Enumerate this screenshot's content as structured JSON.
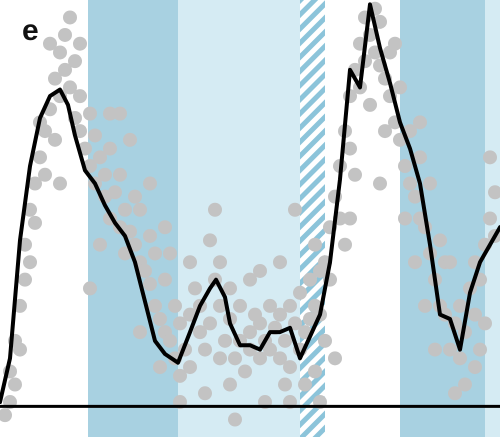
{
  "panel_label": "e",
  "colors": {
    "band_dark": "#a8d1e1",
    "band_light": "#d5ebf3",
    "hatch": "#8cc4da",
    "scatter": "#c3c3c3",
    "line": "#000000",
    "baseline": "#000000"
  },
  "chart_data": {
    "type": "line",
    "title": "",
    "xlabel": "",
    "ylabel": "",
    "xlim": [
      0,
      100
    ],
    "ylim": [
      0,
      100
    ],
    "axes_visible": false,
    "grid": false,
    "baseline_y": 7,
    "bands": [
      {
        "kind": "dark",
        "x0": 17.6,
        "x1": 35.6
      },
      {
        "kind": "light",
        "x0": 35.6,
        "x1": 60.0
      },
      {
        "kind": "hatched",
        "x0": 60.0,
        "x1": 65.0
      },
      {
        "kind": "dark",
        "x0": 80.0,
        "x1": 97.0
      },
      {
        "kind": "light",
        "x0": 97.0,
        "x1": 100.0
      }
    ],
    "series": [
      {
        "style": "line",
        "x": [
          0.0,
          2.0,
          4.0,
          6.0,
          8.0,
          10.0,
          12.0,
          13.6,
          15.0,
          17.0,
          19.0,
          21.0,
          23.0,
          25.0,
          27.0,
          29.0,
          31.0,
          33.0,
          35.6,
          38.0,
          40.0,
          42.0,
          43.2,
          45.0,
          46.0,
          48.0,
          50.0,
          52.0,
          54.0,
          56.0,
          58.0,
          60.0,
          62.0,
          64.0,
          66.0,
          68.0,
          70.0,
          72.0,
          74.0,
          76.0,
          78.0,
          80.0,
          82.0,
          84.0,
          86.0,
          88.0,
          90.0,
          92.0,
          94.0,
          96.0,
          98.0,
          100.0
        ],
        "y": [
          8,
          18,
          45,
          62,
          73,
          78,
          79.5,
          76,
          69,
          61,
          58,
          53,
          49,
          46,
          40,
          31,
          22,
          19,
          17,
          24,
          30,
          34,
          36,
          32,
          26,
          21,
          21,
          20,
          24,
          24,
          25,
          18,
          23,
          28,
          40,
          59,
          84,
          80,
          99,
          89,
          81,
          72,
          66,
          58,
          44,
          28,
          27,
          20,
          33,
          40,
          44,
          48
        ]
      },
      {
        "style": "scatter",
        "points": [
          [
            1,
            5
          ],
          [
            2,
            15
          ],
          [
            3,
            22
          ],
          [
            3,
            12
          ],
          [
            4,
            30
          ],
          [
            5,
            44
          ],
          [
            5,
            36
          ],
          [
            6,
            52
          ],
          [
            7,
            58
          ],
          [
            7,
            49
          ],
          [
            8,
            64
          ],
          [
            9,
            70
          ],
          [
            9,
            60
          ],
          [
            10,
            75
          ],
          [
            11,
            82
          ],
          [
            11,
            68
          ],
          [
            12,
            88
          ],
          [
            12,
            78
          ],
          [
            13,
            92
          ],
          [
            13,
            84
          ],
          [
            14,
            80
          ],
          [
            15,
            73
          ],
          [
            15,
            86
          ],
          [
            16,
            78
          ],
          [
            16,
            70
          ],
          [
            17,
            66
          ],
          [
            18,
            62
          ],
          [
            18,
            74
          ],
          [
            19,
            58
          ],
          [
            19,
            69
          ],
          [
            20,
            64
          ],
          [
            21,
            55
          ],
          [
            21,
            60
          ],
          [
            22,
            50
          ],
          [
            22,
            66
          ],
          [
            23,
            56
          ],
          [
            24,
            48
          ],
          [
            24,
            60
          ],
          [
            25,
            52
          ],
          [
            25,
            42
          ],
          [
            26,
            47
          ],
          [
            27,
            44
          ],
          [
            27,
            55
          ],
          [
            28,
            40
          ],
          [
            28,
            52
          ],
          [
            29,
            38
          ],
          [
            30,
            35
          ],
          [
            30,
            46
          ],
          [
            31,
            30
          ],
          [
            31,
            42
          ],
          [
            32,
            27
          ],
          [
            33,
            24
          ],
          [
            33,
            36
          ],
          [
            34,
            22
          ],
          [
            35,
            30
          ],
          [
            35,
            18
          ],
          [
            36,
            14
          ],
          [
            36,
            26
          ],
          [
            37,
            20
          ],
          [
            38,
            28
          ],
          [
            38,
            16
          ],
          [
            39,
            34
          ],
          [
            40,
            24
          ],
          [
            40,
            30
          ],
          [
            41,
            20
          ],
          [
            42,
            26
          ],
          [
            42,
            45
          ],
          [
            43,
            36
          ],
          [
            43,
            52
          ],
          [
            44,
            30
          ],
          [
            44,
            40
          ],
          [
            45,
            22
          ],
          [
            46,
            27
          ],
          [
            46,
            34
          ],
          [
            47,
            18
          ],
          [
            48,
            22
          ],
          [
            48,
            30
          ],
          [
            49,
            15
          ],
          [
            50,
            24
          ],
          [
            50,
            20
          ],
          [
            51,
            28
          ],
          [
            52,
            18
          ],
          [
            52,
            26
          ],
          [
            53,
            22
          ],
          [
            54,
            30
          ],
          [
            54,
            20
          ],
          [
            55,
            25
          ],
          [
            56,
            18
          ],
          [
            56,
            28
          ],
          [
            57,
            22
          ],
          [
            58,
            30
          ],
          [
            58,
            16
          ],
          [
            59,
            26
          ],
          [
            60,
            20
          ],
          [
            60,
            33
          ],
          [
            61,
            24
          ],
          [
            62,
            36
          ],
          [
            62,
            27
          ],
          [
            63,
            30
          ],
          [
            63,
            44
          ],
          [
            64,
            38
          ],
          [
            64,
            28
          ],
          [
            65,
            40
          ],
          [
            66,
            48
          ],
          [
            66,
            36
          ],
          [
            67,
            55
          ],
          [
            68,
            62
          ],
          [
            68,
            50
          ],
          [
            69,
            70
          ],
          [
            70,
            78
          ],
          [
            70,
            66
          ],
          [
            71,
            84
          ],
          [
            72,
            90
          ],
          [
            72,
            80
          ],
          [
            73,
            96
          ],
          [
            73,
            86
          ],
          [
            74,
            92
          ],
          [
            75,
            98
          ],
          [
            75,
            88
          ],
          [
            76,
            85
          ],
          [
            76,
            95
          ],
          [
            77,
            82
          ],
          [
            78,
            78
          ],
          [
            78,
            88
          ],
          [
            79,
            72
          ],
          [
            80,
            68
          ],
          [
            80,
            80
          ],
          [
            81,
            62
          ],
          [
            82,
            70
          ],
          [
            82,
            58
          ],
          [
            83,
            55
          ],
          [
            84,
            64
          ],
          [
            84,
            50
          ],
          [
            85,
            48
          ],
          [
            86,
            58
          ],
          [
            86,
            42
          ],
          [
            87,
            36
          ],
          [
            88,
            45
          ],
          [
            88,
            30
          ],
          [
            89,
            28
          ],
          [
            90,
            20
          ],
          [
            91,
            26
          ],
          [
            92,
            18
          ],
          [
            92,
            30
          ],
          [
            93,
            24
          ],
          [
            94,
            34
          ],
          [
            95,
            28
          ],
          [
            95,
            40
          ],
          [
            96,
            36
          ],
          [
            97,
            44
          ],
          [
            98,
            50
          ],
          [
            99,
            46
          ],
          [
            99,
            56
          ],
          [
            10,
            90
          ],
          [
            14,
            96
          ],
          [
            20,
            44
          ],
          [
            26,
            68
          ],
          [
            30,
            58
          ],
          [
            33,
            48
          ],
          [
            41,
            10
          ],
          [
            47,
            4
          ],
          [
            53,
            8
          ],
          [
            57,
            12
          ],
          [
            63,
            15
          ],
          [
            67,
            18
          ],
          [
            71,
            60
          ],
          [
            77,
            70
          ],
          [
            83,
            40
          ],
          [
            87,
            20
          ],
          [
            93,
            12
          ],
          [
            6,
            40
          ],
          [
            8,
            72
          ],
          [
            12,
            58
          ],
          [
            16,
            90
          ],
          [
            18,
            34
          ],
          [
            24,
            74
          ],
          [
            28,
            24
          ],
          [
            34,
            42
          ],
          [
            38,
            40
          ],
          [
            44,
            18
          ],
          [
            50,
            36
          ],
          [
            56,
            40
          ],
          [
            59,
            52
          ],
          [
            61,
            12
          ],
          [
            65,
            22
          ],
          [
            69,
            44
          ],
          [
            74,
            76
          ],
          [
            79,
            90
          ],
          [
            81,
            50
          ],
          [
            85,
            30
          ],
          [
            89,
            40
          ],
          [
            91,
            10
          ],
          [
            95,
            16
          ],
          [
            97,
            26
          ],
          [
            2,
            8
          ],
          [
            4,
            20
          ],
          [
            22,
            74
          ],
          [
            32,
            16
          ],
          [
            36,
            8
          ],
          [
            46,
            12
          ],
          [
            52,
            38
          ],
          [
            58,
            8
          ],
          [
            64,
            8
          ],
          [
            70,
            50
          ],
          [
            76,
            58
          ],
          [
            84,
            72
          ],
          [
            90,
            40
          ],
          [
            96,
            20
          ],
          [
            98,
            64
          ]
        ]
      }
    ]
  }
}
